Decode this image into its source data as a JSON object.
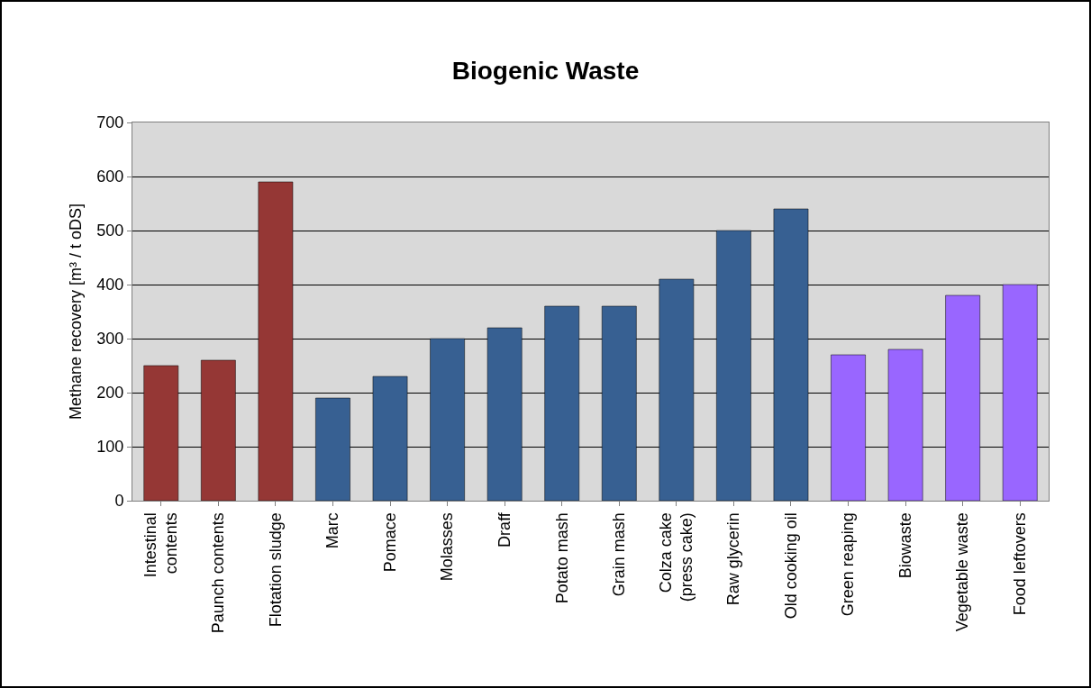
{
  "chart_data": {
    "type": "bar",
    "title": "Biogenic Waste",
    "ylabel": "Methane recovery [m³ / t oDS]",
    "categories": [
      "Intestinal\ncontents",
      "Paunch contents",
      "Flotation sludge",
      "Marc",
      "Pomace",
      "Molasses",
      "Draff",
      "Potato mash",
      "Grain mash",
      "Colza cake\n(press cake)",
      "Raw glycerin",
      "Old cooking oil",
      "Green reaping",
      "Biowaste",
      "Vegetable waste",
      "Food leftovers"
    ],
    "values": [
      250,
      260,
      590,
      190,
      230,
      300,
      320,
      360,
      360,
      410,
      500,
      540,
      270,
      280,
      380,
      400
    ],
    "colors": [
      "#953735",
      "#953735",
      "#953735",
      "#376092",
      "#376092",
      "#376092",
      "#376092",
      "#376092",
      "#376092",
      "#376092",
      "#376092",
      "#376092",
      "#9966ff",
      "#9966ff",
      "#9966ff",
      "#9966ff"
    ],
    "ylim": [
      0,
      700
    ],
    "yticks": [
      0,
      100,
      200,
      300,
      400,
      500,
      600,
      700
    ],
    "grid": "y",
    "legend": false
  }
}
